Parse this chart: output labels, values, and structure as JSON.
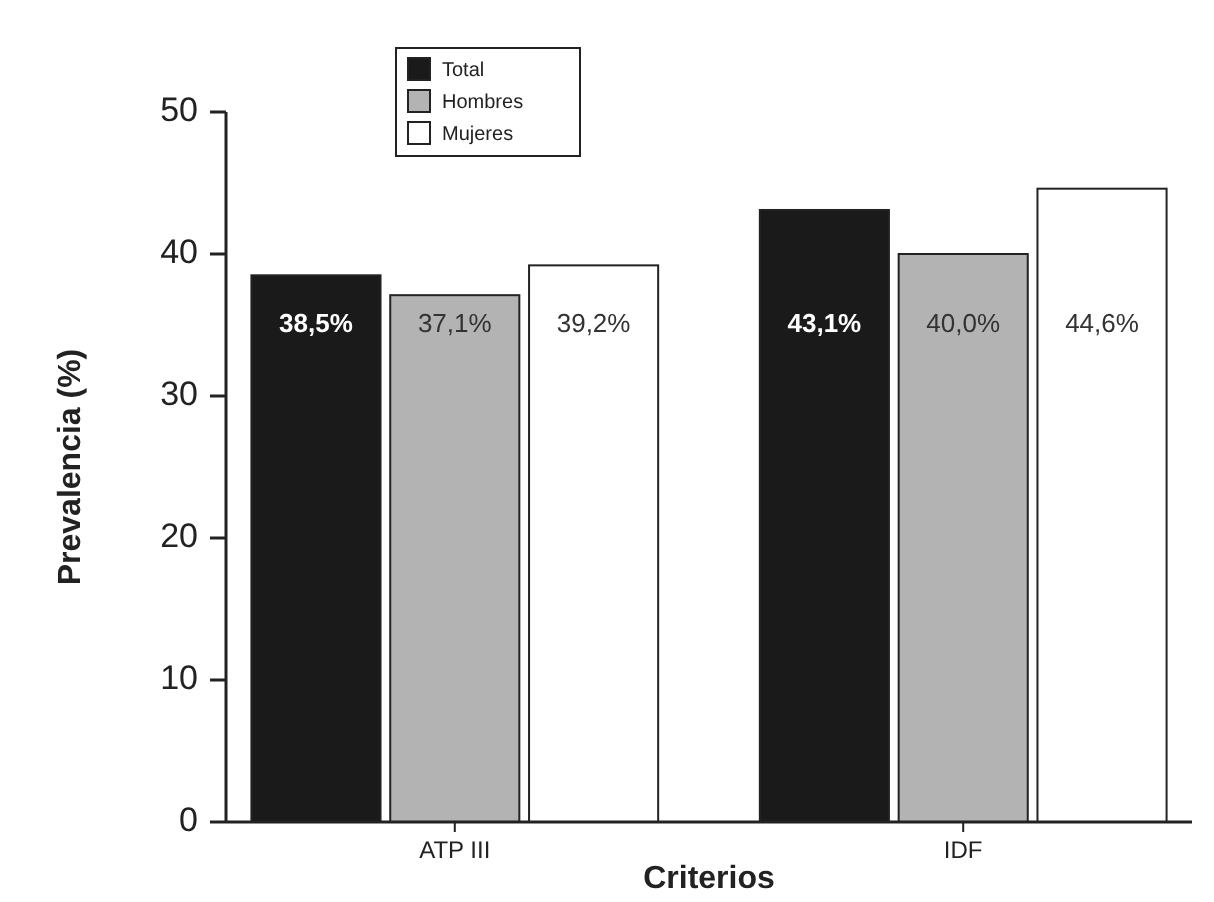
{
  "chart_data": {
    "type": "bar",
    "xlabel": "Criterios",
    "ylabel": "Prevalencia (%)",
    "categories": [
      "ATP III",
      "IDF"
    ],
    "series": [
      {
        "name": "Total",
        "color": "#1a1a1a",
        "values": [
          38.5,
          43.1
        ],
        "value_labels": [
          "38,5%",
          "43,1%"
        ]
      },
      {
        "name": "Hombres",
        "color": "#b3b3b3",
        "values": [
          37.1,
          40.0
        ],
        "value_labels": [
          "37,1%",
          "40,0%"
        ]
      },
      {
        "name": "Mujeres",
        "color": "#ffffff",
        "values": [
          39.2,
          44.6
        ],
        "value_labels": [
          "39,2%",
          "44,6%"
        ]
      }
    ],
    "ylim": [
      0,
      50
    ],
    "yticks": [
      0,
      10,
      20,
      30,
      40,
      50
    ],
    "grid": false,
    "legend": "top left"
  }
}
